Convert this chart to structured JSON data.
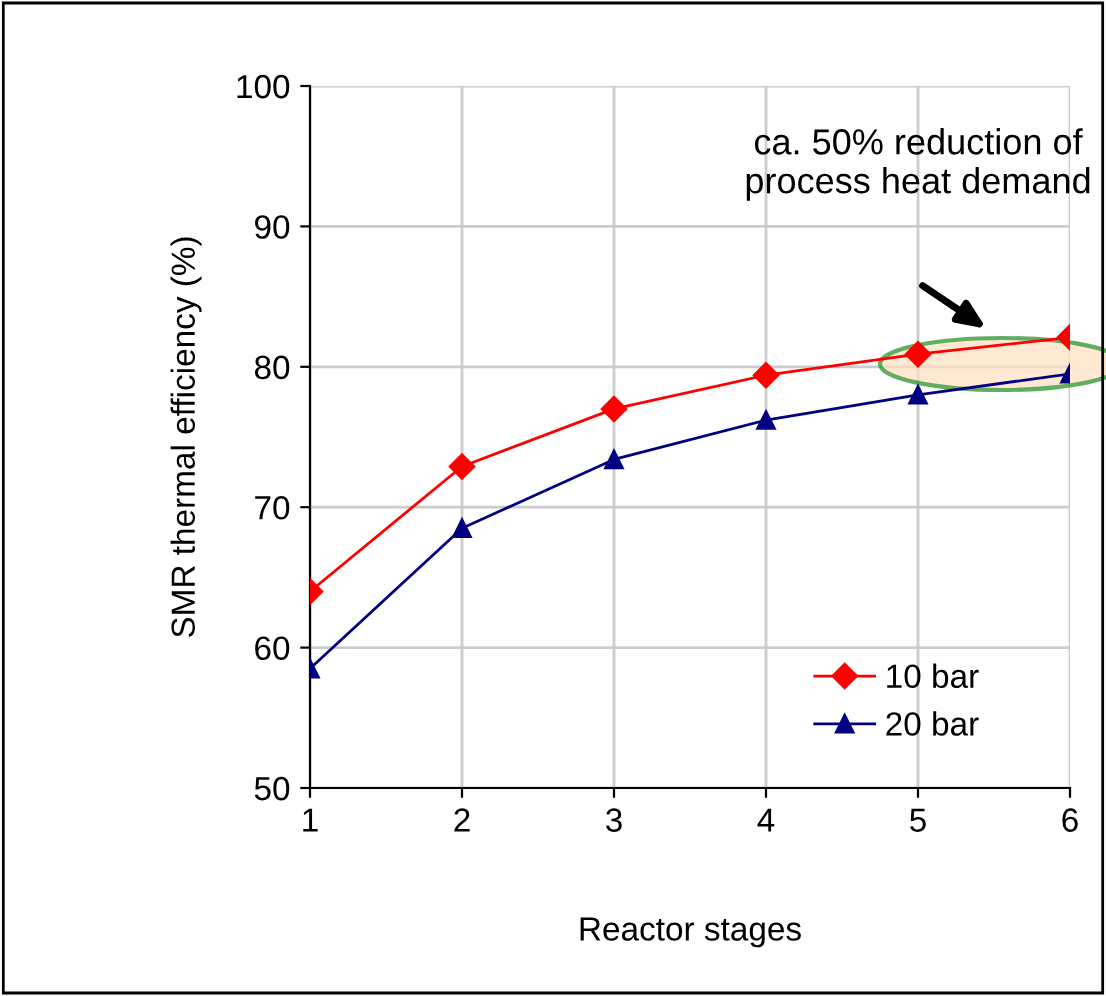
{
  "chart_data": {
    "type": "line",
    "xlabel": "Reactor stages",
    "ylabel": "SMR thermal efficiency (%)",
    "x": [
      1,
      2,
      3,
      4,
      5,
      6
    ],
    "series": [
      {
        "name": "10 bar",
        "color": "#ff0000",
        "marker": "diamond",
        "values": [
          64.0,
          72.9,
          77.0,
          79.4,
          80.9,
          82.1
        ]
      },
      {
        "name": "20 bar",
        "color": "#000080",
        "marker": "triangle",
        "values": [
          58.5,
          68.5,
          73.4,
          76.2,
          78.0,
          79.5
        ]
      }
    ],
    "xlim": [
      1,
      6
    ],
    "xticks": [
      1,
      2,
      3,
      4,
      5,
      6
    ],
    "ylim": [
      50,
      100
    ],
    "yticks": [
      50,
      60,
      70,
      80,
      90,
      100
    ],
    "grid": true,
    "legend": "bottom right",
    "line_style": "solid",
    "annotations": [
      "ca. 50% reduction of\nprocess heat demand"
    ]
  }
}
